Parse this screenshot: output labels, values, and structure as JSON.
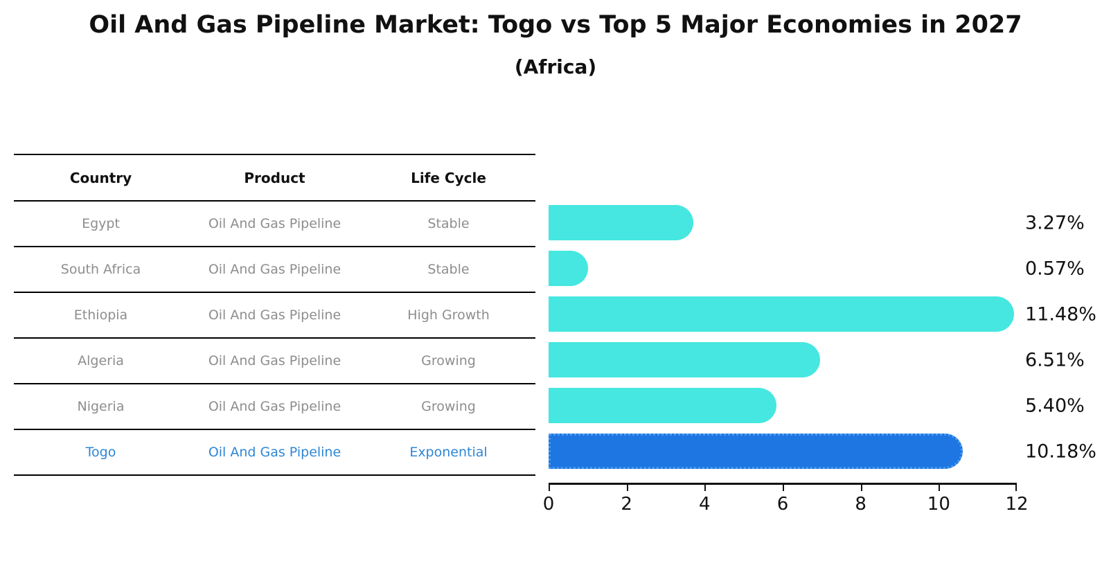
{
  "title": "Oil And Gas Pipeline Market: Togo vs Top 5 Major Economies in 2027",
  "subtitle": "(Africa)",
  "table": {
    "headers": [
      "Country",
      "Product",
      "Life Cycle"
    ],
    "rows": [
      {
        "country": "Egypt",
        "product": "Oil And Gas Pipeline",
        "life_cycle": "Stable"
      },
      {
        "country": "South Africa",
        "product": "Oil And Gas Pipeline",
        "life_cycle": "Stable"
      },
      {
        "country": "Ethiopia",
        "product": "Oil And Gas Pipeline",
        "life_cycle": "High Growth"
      },
      {
        "country": "Algeria",
        "product": "Oil And Gas Pipeline",
        "life_cycle": "Growing"
      },
      {
        "country": "Nigeria",
        "product": "Oil And Gas Pipeline",
        "life_cycle": "Growing"
      },
      {
        "country": "Togo",
        "product": "Oil And Gas Pipeline",
        "life_cycle": "Exponential"
      }
    ],
    "highlight_row": "Togo"
  },
  "chart_data": {
    "type": "bar",
    "orientation": "horizontal",
    "categories": [
      "Egypt",
      "South Africa",
      "Ethiopia",
      "Algeria",
      "Nigeria",
      "Togo"
    ],
    "values": [
      3.27,
      0.57,
      11.48,
      6.51,
      5.4,
      10.18
    ],
    "value_labels": [
      "3.27%",
      "0.57%",
      "11.48%",
      "6.51%",
      "5.40%",
      "10.18%"
    ],
    "highlight_index": 5,
    "xlim": [
      0,
      12
    ],
    "xticks": [
      0,
      2,
      4,
      6,
      8,
      10,
      12
    ],
    "grid": false,
    "legend": false,
    "bar_color": "#45e7e0",
    "highlight_color": "#1d76e2",
    "highlight_border_color": "#4a9bee"
  },
  "colors": {
    "title_text": "#111111",
    "table_row_text": "#8d8d8d",
    "highlight_text": "#2e86d6",
    "table_line": "#000000",
    "axis": "#111111",
    "value_label_text": "#111111",
    "background": "#ffffff"
  }
}
